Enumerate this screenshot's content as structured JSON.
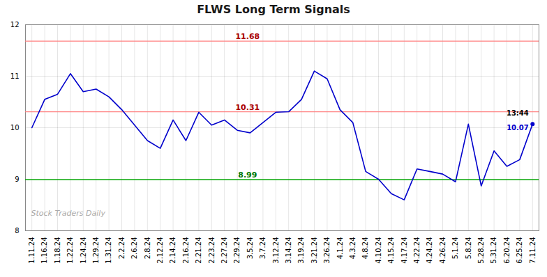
{
  "chart_data": {
    "type": "line",
    "title": "FLWS Long Term Signals",
    "categories": [
      "1.11.24",
      "1.16.24",
      "1.18.24",
      "1.22.24",
      "1.24.24",
      "1.29.24",
      "1.31.24",
      "2.2.24",
      "2.6.24",
      "2.8.24",
      "2.12.24",
      "2.14.24",
      "2.16.24",
      "2.21.24",
      "2.23.24",
      "2.27.24",
      "2.29.24",
      "3.5.24",
      "3.7.24",
      "3.12.24",
      "3.14.24",
      "3.19.24",
      "3.21.24",
      "3.26.24",
      "4.1.24",
      "4.3.24",
      "4.8.24",
      "4.10.24",
      "4.15.24",
      "4.17.24",
      "4.22.24",
      "4.24.24",
      "4.26.24",
      "5.1.24",
      "5.8.24",
      "5.28.24",
      "5.31.24",
      "6.20.24",
      "6.25.24",
      "7.11.24"
    ],
    "values": [
      10.0,
      10.55,
      10.65,
      11.05,
      10.7,
      10.75,
      10.6,
      10.35,
      10.05,
      9.75,
      9.6,
      10.15,
      9.75,
      10.3,
      10.05,
      10.15,
      9.95,
      9.9,
      10.1,
      10.3,
      10.31,
      10.55,
      11.1,
      10.95,
      10.35,
      10.1,
      9.15,
      9.0,
      8.72,
      8.6,
      9.2,
      9.15,
      9.1,
      8.95,
      10.07,
      8.87,
      9.55,
      9.25,
      9.38,
      10.07
    ],
    "color": "#0000cc",
    "ylim": [
      8,
      12
    ],
    "yticks": [
      8,
      9,
      10,
      11,
      12
    ],
    "grid": true,
    "reference_lines": [
      {
        "y": 11.68,
        "color": "#ff8080",
        "label": "11.68",
        "label_color": "#aa0000"
      },
      {
        "y": 10.31,
        "color": "#ff8080",
        "label": "10.31",
        "label_color": "#aa0000"
      },
      {
        "y": 8.99,
        "color": "#00aa00",
        "label": "8.99",
        "label_color": "#007700"
      }
    ],
    "last_point_labels": [
      {
        "text": "13:44",
        "color": "#000000"
      },
      {
        "text": "10.07",
        "color": "#0000cc"
      }
    ],
    "watermark": {
      "text": "Stock Traders Daily",
      "color": "#aaaaaa"
    }
  }
}
